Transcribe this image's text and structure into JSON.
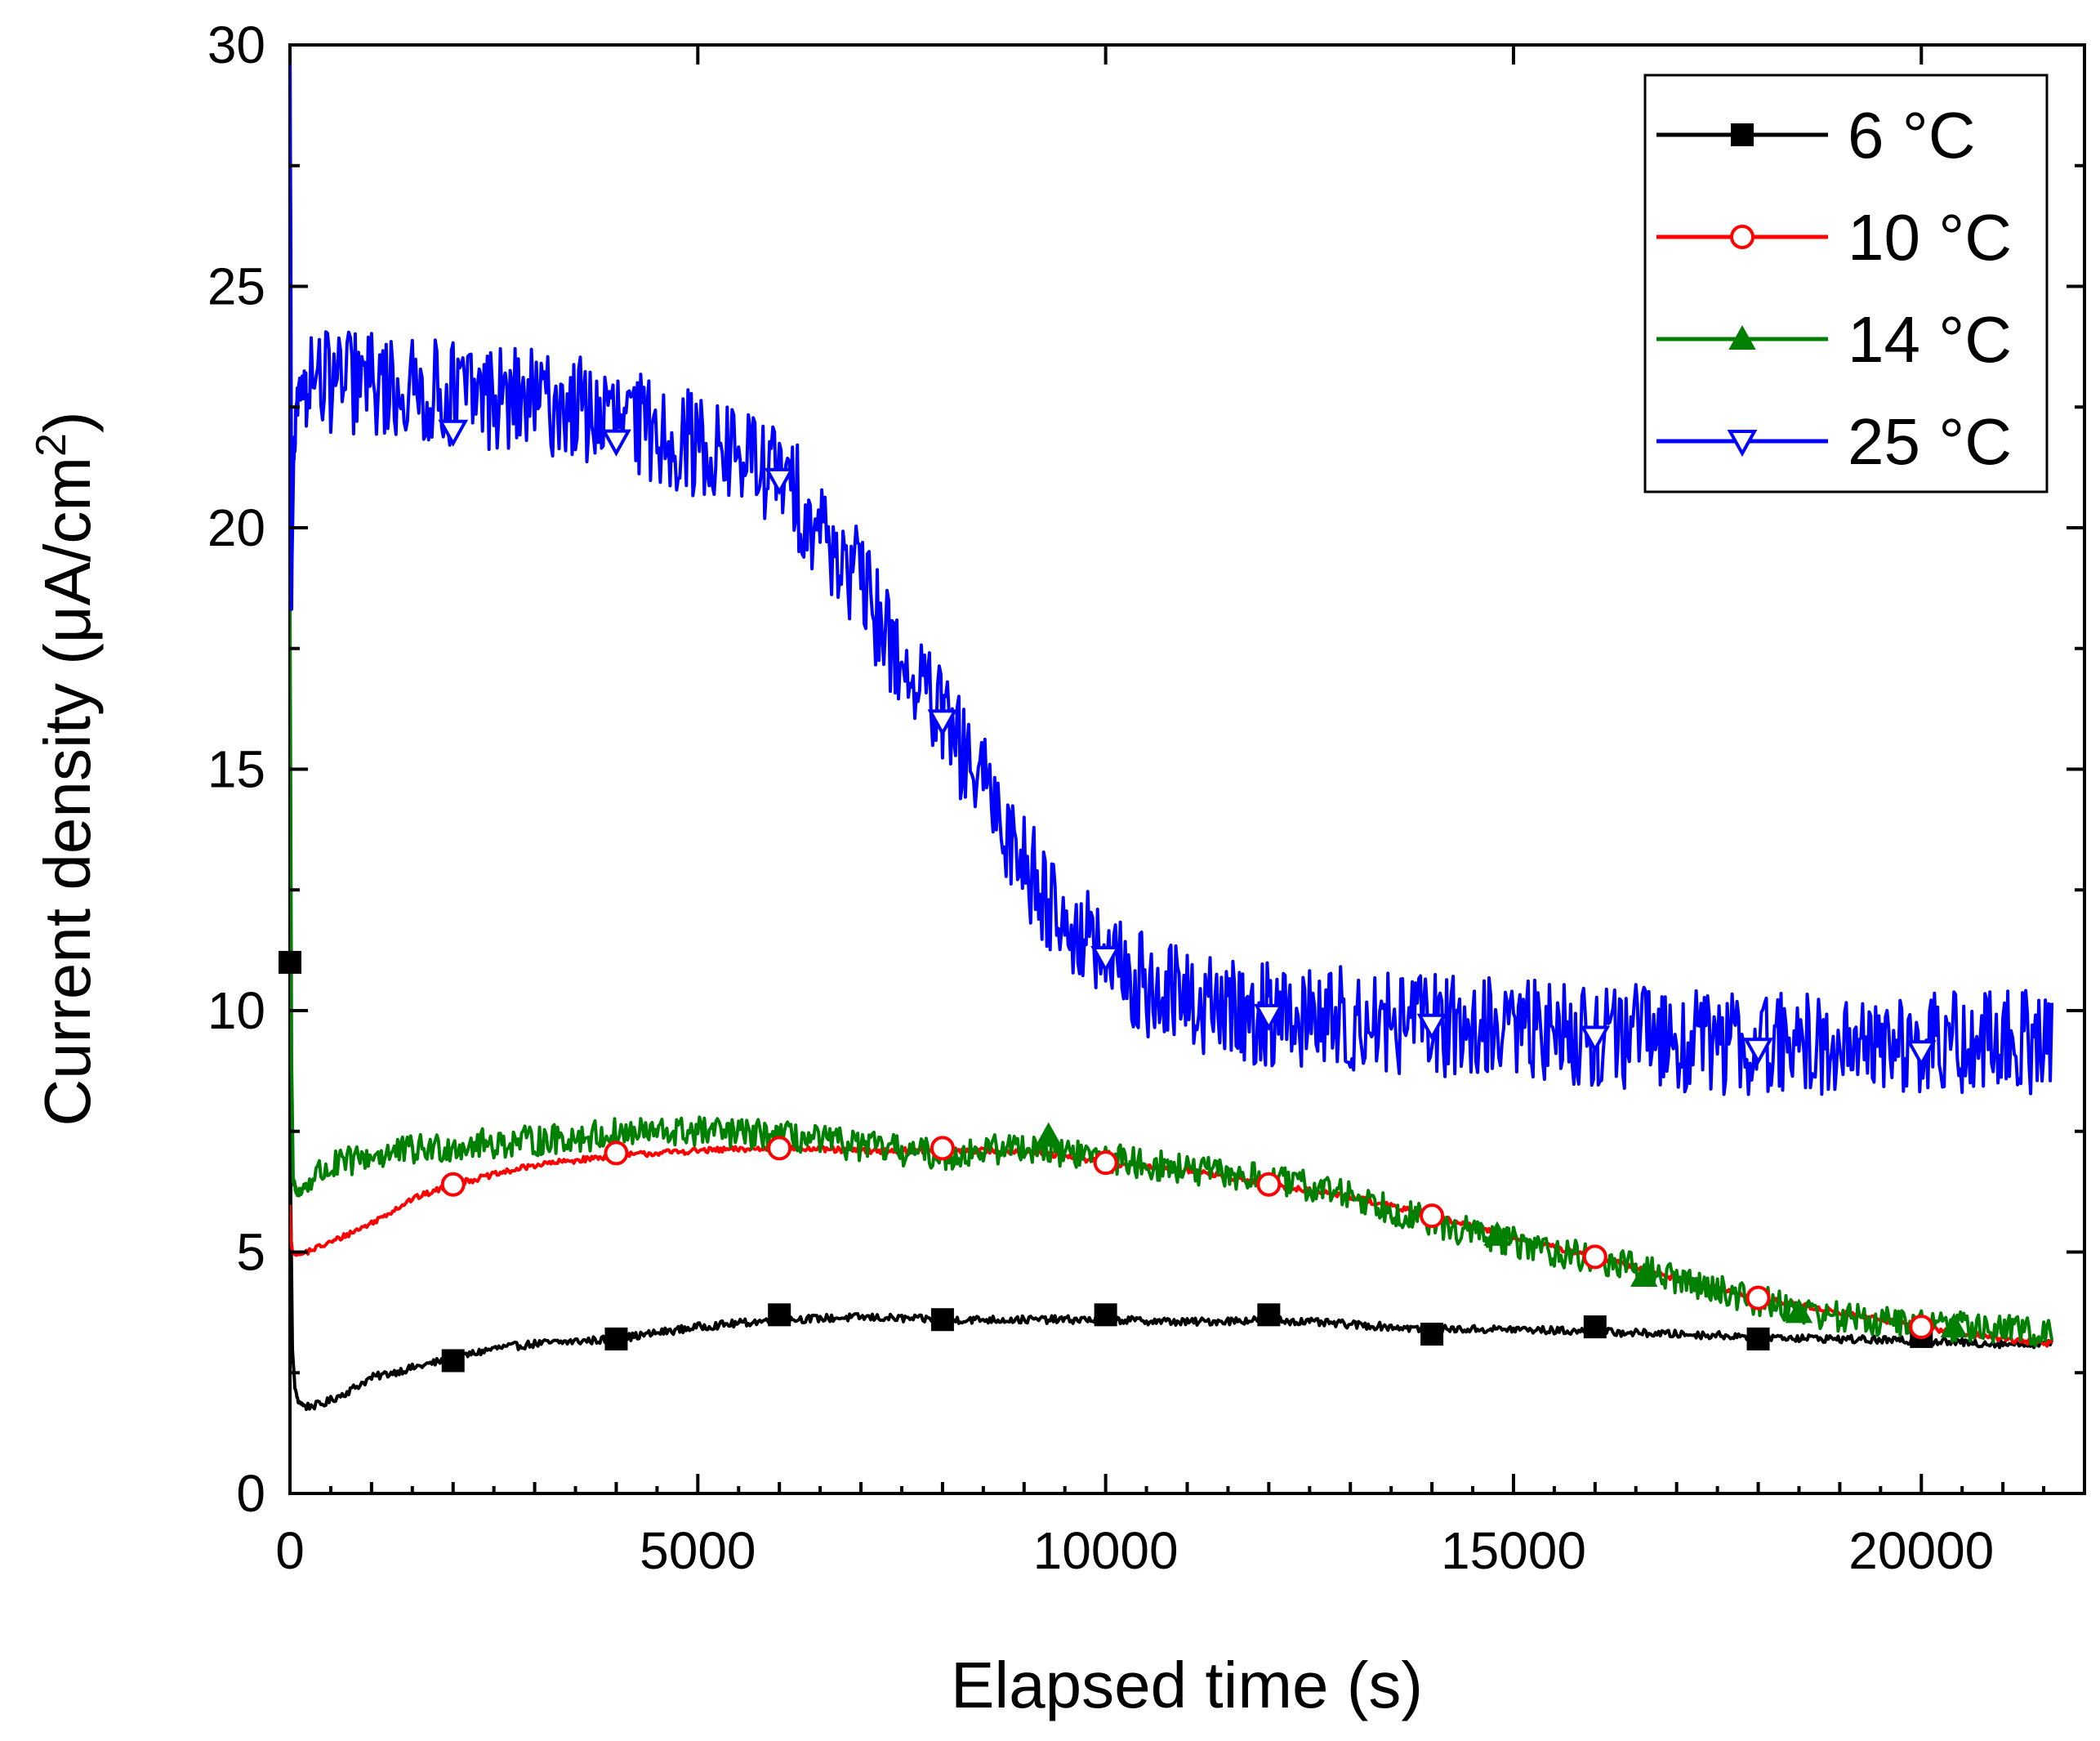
{
  "chart_data": {
    "type": "line",
    "xlabel": "Elapsed time (s)",
    "ylabel_main": "Current density (μA/cm",
    "ylabel_sup": "2",
    "ylabel_close": ")",
    "xlim": [
      0,
      22000
    ],
    "ylim": [
      0,
      30
    ],
    "xticks": [
      0,
      5000,
      10000,
      15000,
      20000
    ],
    "yticks": [
      0,
      5,
      10,
      15,
      20,
      25,
      30
    ],
    "xtick_labels": [
      "0",
      "5000",
      "10000",
      "15000",
      "20000"
    ],
    "ytick_labels": [
      "0",
      "5",
      "10",
      "15",
      "20",
      "25",
      "30"
    ],
    "grid": false,
    "legend_position": "top-right",
    "series": [
      {
        "name": "6 °C",
        "color": "#000000",
        "marker": "square-filled",
        "noise": 0.08,
        "x": [
          0,
          10,
          30,
          60,
          100,
          200,
          400,
          700,
          1000,
          1500,
          2000,
          2500,
          3000,
          4000,
          5000,
          6000,
          7000,
          8000,
          9000,
          10000,
          11000,
          12000,
          13000,
          14000,
          15000,
          16000,
          17000,
          18000,
          19000,
          20000,
          21000,
          21600
        ],
        "y": [
          11.0,
          6.0,
          3.0,
          2.2,
          1.9,
          1.8,
          1.85,
          2.1,
          2.4,
          2.6,
          2.8,
          3.0,
          3.1,
          3.2,
          3.45,
          3.6,
          3.65,
          3.6,
          3.6,
          3.6,
          3.55,
          3.6,
          3.5,
          3.4,
          3.4,
          3.35,
          3.3,
          3.25,
          3.2,
          3.15,
          3.1,
          3.1
        ],
        "markers_x": [
          0,
          2000,
          4000,
          6000,
          8000,
          10000,
          12000,
          14000,
          16000,
          18000,
          20000
        ],
        "markers_y": [
          11.0,
          2.75,
          3.2,
          3.7,
          3.6,
          3.7,
          3.7,
          3.3,
          3.45,
          3.2,
          3.25
        ]
      },
      {
        "name": "10 °C",
        "color": "#ff0000",
        "marker": "circle-open",
        "noise": 0.06,
        "x": [
          0,
          10,
          30,
          60,
          100,
          200,
          500,
          1000,
          1500,
          2000,
          3000,
          4000,
          5000,
          6000,
          7000,
          8000,
          9000,
          10000,
          11000,
          12000,
          13000,
          14000,
          15000,
          16000,
          17000,
          18000,
          19000,
          20000,
          21000,
          21600
        ],
        "y": [
          6.0,
          5.3,
          5.0,
          4.95,
          4.95,
          5.0,
          5.2,
          5.6,
          6.1,
          6.4,
          6.8,
          7.0,
          7.1,
          7.15,
          7.1,
          7.1,
          7.1,
          6.85,
          6.7,
          6.4,
          6.15,
          5.75,
          5.3,
          4.9,
          4.45,
          4.05,
          3.75,
          3.45,
          3.2,
          3.1
        ],
        "markers_x": [
          2000,
          4000,
          6000,
          8000,
          10000,
          12000,
          14000,
          16000,
          18000,
          20000
        ],
        "markers_y": [
          6.4,
          7.05,
          7.15,
          7.15,
          6.85,
          6.4,
          5.75,
          4.9,
          4.05,
          3.45
        ]
      },
      {
        "name": "14 °C",
        "color": "#008000",
        "marker": "triangle-up-filled",
        "noise": 0.32,
        "x": [
          0,
          10,
          20,
          40,
          80,
          150,
          300,
          600,
          1000,
          2000,
          3000,
          4000,
          5000,
          6000,
          7000,
          8000,
          9000,
          10000,
          11000,
          12000,
          13000,
          14000,
          15000,
          16000,
          17000,
          18000,
          19000,
          20000,
          21000,
          21600
        ],
        "y": [
          18.5,
          14.0,
          9.0,
          6.5,
          6.2,
          6.3,
          6.6,
          6.8,
          7.0,
          7.2,
          7.3,
          7.45,
          7.5,
          7.4,
          7.2,
          7.0,
          7.2,
          6.95,
          6.7,
          6.5,
          6.2,
          5.6,
          5.2,
          4.85,
          4.45,
          4.0,
          3.65,
          3.5,
          3.4,
          3.35
        ],
        "markers_x": [
          9300,
          14800,
          16600,
          18500,
          20400
        ],
        "markers_y": [
          7.4,
          5.35,
          4.5,
          3.75,
          3.45
        ]
      },
      {
        "name": "25 °C",
        "color": "#0000ff",
        "marker": "triangle-down-open",
        "noise": 1.1,
        "x": [
          0,
          10,
          20,
          40,
          80,
          150,
          300,
          600,
          1000,
          1500,
          2000,
          2500,
          3000,
          3500,
          4000,
          4500,
          5000,
          5500,
          6000,
          6500,
          7000,
          7500,
          8000,
          8500,
          9000,
          9500,
          10000,
          10500,
          11000,
          11500,
          12000,
          13000,
          14000,
          15000,
          16000,
          17000,
          18000,
          19000,
          20000,
          21000,
          21600
        ],
        "y": [
          30.0,
          26.0,
          18.5,
          21.0,
          22.5,
          23.0,
          23.0,
          23.0,
          23.0,
          22.8,
          22.8,
          22.7,
          22.6,
          22.5,
          22.2,
          22.0,
          21.7,
          21.5,
          21.1,
          20.0,
          18.8,
          17.2,
          16.0,
          14.6,
          13.1,
          11.9,
          11.0,
          10.5,
          10.2,
          10.0,
          9.9,
          9.8,
          9.7,
          9.6,
          9.5,
          9.4,
          9.3,
          9.3,
          9.3,
          9.35,
          9.4
        ],
        "markers_x": [
          2000,
          4000,
          6000,
          8000,
          10000,
          12000,
          14000,
          16000,
          18000,
          20000
        ],
        "markers_y": [
          22.0,
          21.8,
          21.0,
          16.0,
          11.1,
          9.9,
          9.7,
          9.45,
          9.2,
          9.15
        ]
      }
    ]
  }
}
